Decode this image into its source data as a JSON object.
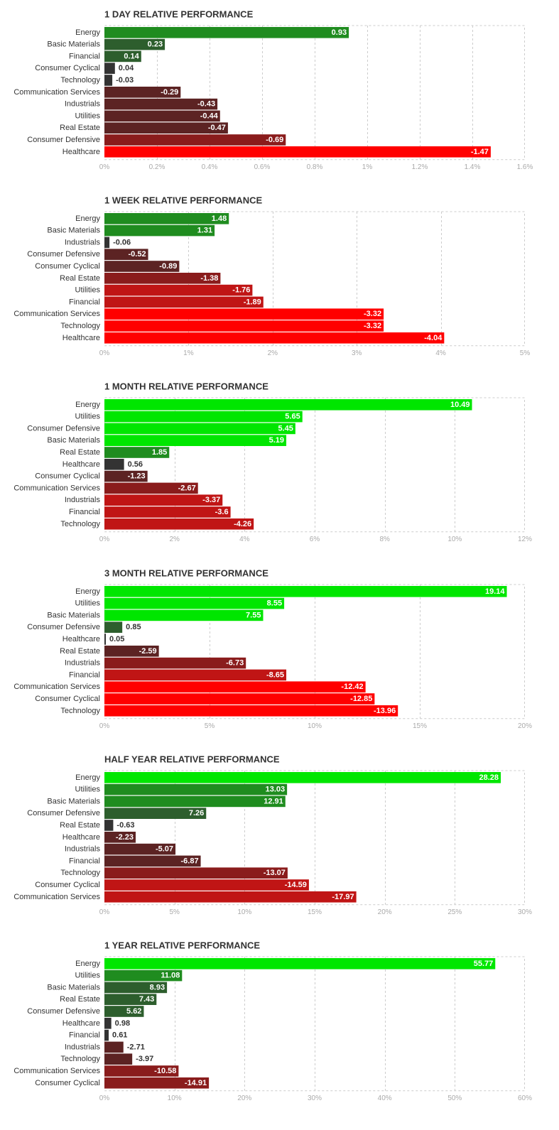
{
  "colors": {
    "pos_bright": "#00e600",
    "pos_mid": "#1f8c1f",
    "pos_dark": "#2d5e2d",
    "neutral": "#333333",
    "neg_dark": "#5c2323",
    "neg_mid": "#8a1c1c",
    "neg_red": "#c01515",
    "neg_bright": "#ff0000",
    "grid": "#cccccc",
    "title": "#333333",
    "tick": "#aaaaaa"
  },
  "chart_data": [
    {
      "type": "bar",
      "orientation": "horizontal",
      "title": "1 DAY RELATIVE PERFORMANCE",
      "categories": [
        "Energy",
        "Basic Materials",
        "Financial",
        "Consumer Cyclical",
        "Technology",
        "Communication Services",
        "Industrials",
        "Utilities",
        "Real Estate",
        "Consumer Defensive",
        "Healthcare"
      ],
      "values": [
        0.93,
        0.23,
        0.14,
        0.04,
        -0.03,
        -0.29,
        -0.43,
        -0.44,
        -0.47,
        -0.69,
        -1.47
      ],
      "value_labels": [
        "0.93",
        "0.23",
        "0.14",
        "0.04",
        "-0.03",
        "-0.29",
        "-0.43",
        "-0.44",
        "-0.47",
        "-0.69",
        "-1.47"
      ],
      "bar_colors": [
        "pos_mid",
        "pos_dark",
        "pos_dark",
        "neutral",
        "neutral",
        "neg_dark",
        "neg_dark",
        "neg_dark",
        "neg_dark",
        "neg_mid",
        "neg_bright"
      ],
      "xlim": [
        0,
        1.6
      ],
      "xticks": [
        0,
        0.2,
        0.4,
        0.6,
        0.8,
        1,
        1.2,
        1.4,
        1.6
      ],
      "xtick_labels": [
        "0%",
        "0.2%",
        "0.4%",
        "0.6%",
        "0.8%",
        "1%",
        "1.2%",
        "1.4%",
        "1.6%"
      ],
      "grid": true
    },
    {
      "type": "bar",
      "orientation": "horizontal",
      "title": "1 WEEK RELATIVE PERFORMANCE",
      "categories": [
        "Energy",
        "Basic Materials",
        "Industrials",
        "Consumer Defensive",
        "Consumer Cyclical",
        "Real Estate",
        "Utilities",
        "Financial",
        "Communication Services",
        "Technology",
        "Healthcare"
      ],
      "values": [
        1.48,
        1.31,
        -0.06,
        -0.52,
        -0.89,
        -1.38,
        -1.76,
        -1.89,
        -3.32,
        -3.32,
        -4.04
      ],
      "value_labels": [
        "1.48",
        "1.31",
        "-0.06",
        "-0.52",
        "-0.89",
        "-1.38",
        "-1.76",
        "-1.89",
        "-3.32",
        "-3.32",
        "-4.04"
      ],
      "bar_colors": [
        "pos_mid",
        "pos_mid",
        "neutral",
        "neg_dark",
        "neg_dark",
        "neg_mid",
        "neg_red",
        "neg_red",
        "neg_bright",
        "neg_bright",
        "neg_bright"
      ],
      "xlim": [
        0,
        5
      ],
      "xticks": [
        0,
        1,
        2,
        3,
        4,
        5
      ],
      "xtick_labels": [
        "0%",
        "1%",
        "2%",
        "3%",
        "4%",
        "5%"
      ],
      "grid": true
    },
    {
      "type": "bar",
      "orientation": "horizontal",
      "title": "1 MONTH RELATIVE PERFORMANCE",
      "categories": [
        "Energy",
        "Utilities",
        "Consumer Defensive",
        "Basic Materials",
        "Real Estate",
        "Healthcare",
        "Consumer Cyclical",
        "Communication Services",
        "Industrials",
        "Financial",
        "Technology"
      ],
      "values": [
        10.49,
        5.65,
        5.45,
        5.19,
        1.85,
        0.56,
        -1.23,
        -2.67,
        -3.37,
        -3.6,
        -4.26
      ],
      "value_labels": [
        "10.49",
        "5.65",
        "5.45",
        "5.19",
        "1.85",
        "0.56",
        "-1.23",
        "-2.67",
        "-3.37",
        "-3.6",
        "-4.26"
      ],
      "bar_colors": [
        "pos_bright",
        "pos_bright",
        "pos_bright",
        "pos_bright",
        "pos_mid",
        "neutral",
        "neg_dark",
        "neg_mid",
        "neg_red",
        "neg_red",
        "neg_red"
      ],
      "xlim": [
        0,
        12
      ],
      "xticks": [
        0,
        2,
        4,
        6,
        8,
        10,
        12
      ],
      "xtick_labels": [
        "0%",
        "2%",
        "4%",
        "6%",
        "8%",
        "10%",
        "12%"
      ],
      "grid": true
    },
    {
      "type": "bar",
      "orientation": "horizontal",
      "title": "3 MONTH RELATIVE PERFORMANCE",
      "categories": [
        "Energy",
        "Utilities",
        "Basic Materials",
        "Consumer Defensive",
        "Healthcare",
        "Real Estate",
        "Industrials",
        "Financial",
        "Communication Services",
        "Consumer Cyclical",
        "Technology"
      ],
      "values": [
        19.14,
        8.55,
        7.55,
        0.85,
        0.05,
        -2.59,
        -6.73,
        -8.65,
        -12.42,
        -12.85,
        -13.96
      ],
      "value_labels": [
        "19.14",
        "8.55",
        "7.55",
        "0.85",
        "0.05",
        "-2.59",
        "-6.73",
        "-8.65",
        "-12.42",
        "-12.85",
        "-13.96"
      ],
      "bar_colors": [
        "pos_bright",
        "pos_bright",
        "pos_bright",
        "pos_dark",
        "neutral",
        "neg_dark",
        "neg_mid",
        "neg_red",
        "neg_bright",
        "neg_bright",
        "neg_bright"
      ],
      "xlim": [
        0,
        20
      ],
      "xticks": [
        0,
        5,
        10,
        15,
        20
      ],
      "xtick_labels": [
        "0%",
        "5%",
        "10%",
        "15%",
        "20%"
      ],
      "grid": true
    },
    {
      "type": "bar",
      "orientation": "horizontal",
      "title": "HALF YEAR RELATIVE PERFORMANCE",
      "categories": [
        "Energy",
        "Utilities",
        "Basic Materials",
        "Consumer Defensive",
        "Real Estate",
        "Healthcare",
        "Industrials",
        "Financial",
        "Technology",
        "Consumer Cyclical",
        "Communication Services"
      ],
      "values": [
        28.28,
        13.03,
        12.91,
        7.26,
        -0.63,
        -2.23,
        -5.07,
        -6.87,
        -13.07,
        -14.59,
        -17.97
      ],
      "value_labels": [
        "28.28",
        "13.03",
        "12.91",
        "7.26",
        "-0.63",
        "-2.23",
        "-5.07",
        "-6.87",
        "-13.07",
        "-14.59",
        "-17.97"
      ],
      "bar_colors": [
        "pos_bright",
        "pos_mid",
        "pos_mid",
        "pos_dark",
        "neutral",
        "neg_dark",
        "neg_dark",
        "neg_dark",
        "neg_mid",
        "neg_red",
        "neg_red"
      ],
      "xlim": [
        0,
        30
      ],
      "xticks": [
        0,
        5,
        10,
        15,
        20,
        25,
        30
      ],
      "xtick_labels": [
        "0%",
        "5%",
        "10%",
        "15%",
        "20%",
        "25%",
        "30%"
      ],
      "grid": true
    },
    {
      "type": "bar",
      "orientation": "horizontal",
      "title": "1 YEAR RELATIVE PERFORMANCE",
      "categories": [
        "Energy",
        "Utilities",
        "Basic Materials",
        "Real Estate",
        "Consumer Defensive",
        "Healthcare",
        "Financial",
        "Industrials",
        "Technology",
        "Communication Services",
        "Consumer Cyclical"
      ],
      "values": [
        55.77,
        11.08,
        8.93,
        7.43,
        5.62,
        0.98,
        0.61,
        -2.71,
        -3.97,
        -10.58,
        -14.91
      ],
      "value_labels": [
        "55.77",
        "11.08",
        "8.93",
        "7.43",
        "5.62",
        "0.98",
        "0.61",
        "-2.71",
        "-3.97",
        "-10.58",
        "-14.91"
      ],
      "bar_colors": [
        "pos_bright",
        "pos_mid",
        "pos_dark",
        "pos_dark",
        "pos_dark",
        "neutral",
        "neutral",
        "neg_dark",
        "neg_dark",
        "neg_mid",
        "neg_mid"
      ],
      "xlim": [
        0,
        60
      ],
      "xticks": [
        0,
        10,
        20,
        30,
        40,
        50,
        60
      ],
      "xtick_labels": [
        "0%",
        "10%",
        "20%",
        "30%",
        "40%",
        "50%",
        "60%"
      ],
      "grid": true
    }
  ]
}
